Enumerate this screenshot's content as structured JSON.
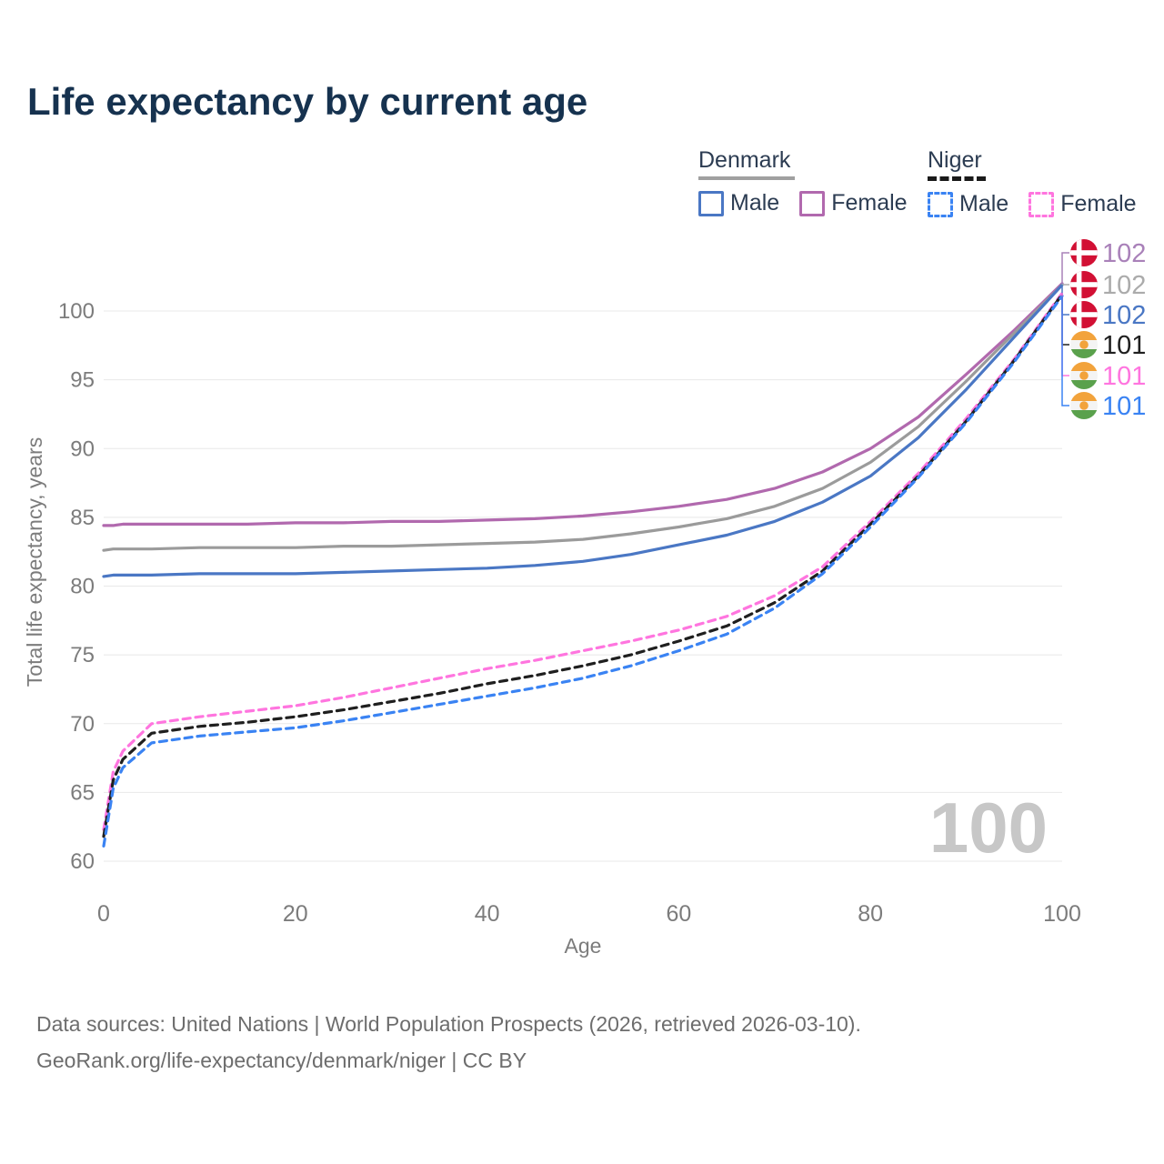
{
  "title": "Life expectancy by current age",
  "legend": {
    "groups": [
      {
        "country": "Denmark",
        "items": [
          {
            "label": "Male"
          },
          {
            "label": "Female"
          }
        ]
      },
      {
        "country": "Niger",
        "items": [
          {
            "label": "Male"
          },
          {
            "label": "Female"
          }
        ]
      }
    ]
  },
  "footer": {
    "line1": "Data sources: United Nations | World Population Prospects (2026, retrieved 2026-03-10).",
    "line2": "GeoRank.org/life-expectancy/denmark/niger | CC BY"
  },
  "colors": {
    "title_text": "#16324f",
    "legend_text": "#2c3c52",
    "axis_text": "#7c7c7c",
    "gridline": "#e8e8e8",
    "watermark": "#c7c7c7",
    "footer_text": "#6d6d6d",
    "denmark_female": "#b169ae",
    "denmark_all": "#9b9b9b",
    "denmark_male": "#4a77c4",
    "niger_female": "#ff75df",
    "niger_all": "#1f1f1f",
    "niger_male": "#3a83f3"
  },
  "chart_data": {
    "type": "line",
    "title": "Life expectancy by current age",
    "xlabel": "Age",
    "ylabel": "Total life expectancy, years",
    "xlim": [
      0,
      100
    ],
    "ylim": [
      60,
      103
    ],
    "xticks": [
      0,
      20,
      40,
      60,
      80,
      100
    ],
    "yticks": [
      60,
      65,
      70,
      75,
      80,
      85,
      90,
      95,
      100
    ],
    "grid": "horizontal",
    "legend_position": "top-right",
    "watermark": "100",
    "x": [
      0,
      1,
      2,
      5,
      10,
      15,
      20,
      25,
      30,
      35,
      40,
      45,
      50,
      55,
      60,
      65,
      70,
      75,
      80,
      85,
      90,
      95,
      100
    ],
    "series": [
      {
        "id": "denmark-female",
        "name": "Denmark Female",
        "country": "Denmark",
        "sex": "Female",
        "color": "#b169ae",
        "dash": false,
        "values": [
          84.4,
          84.4,
          84.5,
          84.5,
          84.5,
          84.5,
          84.6,
          84.6,
          84.7,
          84.7,
          84.8,
          84.9,
          85.1,
          85.4,
          85.8,
          86.3,
          87.1,
          88.3,
          90.0,
          92.3,
          95.4,
          98.6,
          102.0
        ]
      },
      {
        "id": "denmark-all",
        "name": "Denmark",
        "country": "Denmark",
        "sex": "All",
        "color": "#9b9b9b",
        "dash": false,
        "values": [
          82.6,
          82.7,
          82.7,
          82.7,
          82.8,
          82.8,
          82.8,
          82.9,
          82.9,
          83.0,
          83.1,
          83.2,
          83.4,
          83.8,
          84.3,
          84.9,
          85.8,
          87.1,
          89.0,
          91.6,
          94.9,
          98.4,
          101.9
        ]
      },
      {
        "id": "denmark-male",
        "name": "Denmark Male",
        "country": "Denmark",
        "sex": "Male",
        "color": "#4a77c4",
        "dash": false,
        "values": [
          80.7,
          80.8,
          80.8,
          80.8,
          80.9,
          80.9,
          80.9,
          81.0,
          81.1,
          81.2,
          81.3,
          81.5,
          81.8,
          82.3,
          83.0,
          83.7,
          84.7,
          86.1,
          88.0,
          90.8,
          94.3,
          98.1,
          101.9
        ]
      },
      {
        "id": "niger-female",
        "name": "Niger Female",
        "country": "Niger",
        "sex": "Female",
        "color": "#ff75df",
        "dash": true,
        "values": [
          62.3,
          66.5,
          68.0,
          70.0,
          70.5,
          70.9,
          71.3,
          71.9,
          72.6,
          73.3,
          74.0,
          74.6,
          75.3,
          76.0,
          76.8,
          77.8,
          79.3,
          81.4,
          84.7,
          88.2,
          92.2,
          96.5,
          101.3
        ]
      },
      {
        "id": "niger-all",
        "name": "Niger",
        "country": "Niger",
        "sex": "All",
        "color": "#1f1f1f",
        "dash": true,
        "values": [
          61.8,
          65.9,
          67.4,
          69.3,
          69.8,
          70.1,
          70.5,
          71.0,
          71.6,
          72.2,
          72.9,
          73.5,
          74.2,
          75.0,
          76.0,
          77.1,
          78.8,
          81.1,
          84.5,
          88.0,
          92.0,
          96.4,
          101.2
        ]
      },
      {
        "id": "niger-male",
        "name": "Niger Male",
        "country": "Niger",
        "sex": "Male",
        "color": "#3a83f3",
        "dash": true,
        "values": [
          61.1,
          65.3,
          66.8,
          68.6,
          69.1,
          69.4,
          69.7,
          70.2,
          70.8,
          71.4,
          72.0,
          72.6,
          73.3,
          74.2,
          75.3,
          76.5,
          78.4,
          80.9,
          84.3,
          87.9,
          91.9,
          96.3,
          101.1
        ]
      }
    ],
    "end_labels": [
      {
        "series": "denmark-female",
        "value": "102",
        "flag": "denmark",
        "color": "#a981b9"
      },
      {
        "series": "denmark-all",
        "value": "102",
        "flag": "denmark",
        "color": "#ababab"
      },
      {
        "series": "denmark-male",
        "value": "102",
        "flag": "denmark",
        "color": "#4a77c4"
      },
      {
        "series": "niger-all",
        "value": "101",
        "flag": "niger",
        "color": "#1f1f1f"
      },
      {
        "series": "niger-female",
        "value": "101",
        "flag": "niger",
        "color": "#ff75df"
      },
      {
        "series": "niger-male",
        "value": "101",
        "flag": "niger",
        "color": "#3a83f3"
      }
    ]
  }
}
